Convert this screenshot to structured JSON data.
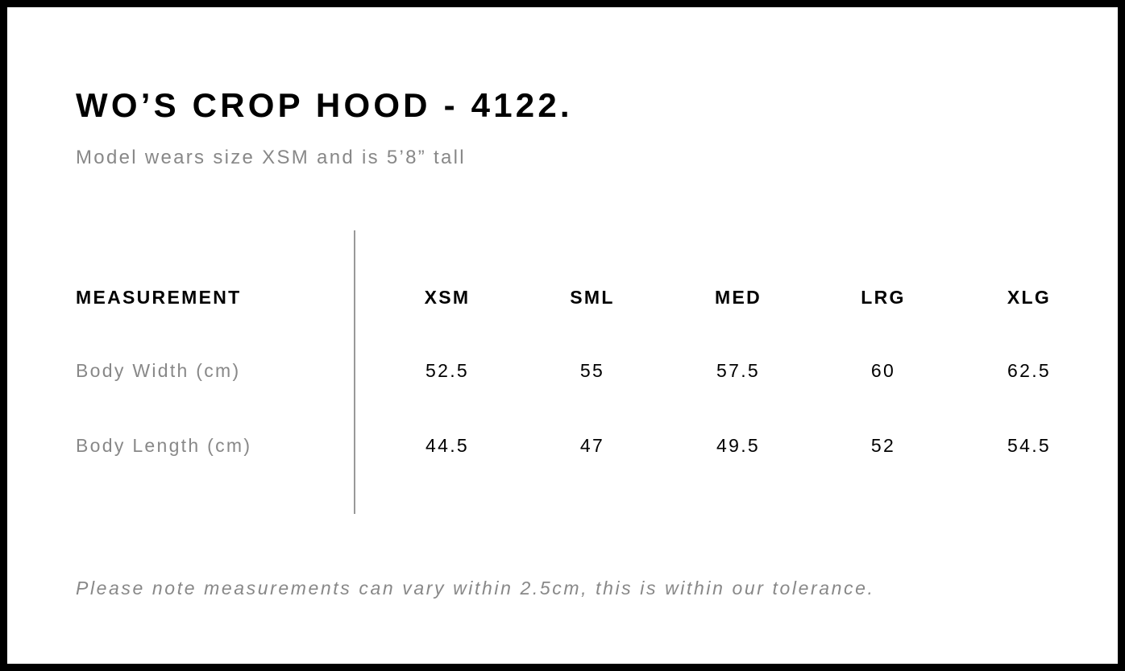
{
  "title": "WO’S CROP HOOD - 4122.",
  "subtitle": "Model wears size XSM and is 5’8” tall",
  "table": {
    "header": "MEASUREMENT",
    "sizes": [
      "XSM",
      "SML",
      "MED",
      "LRG",
      "XLG"
    ],
    "rows": [
      {
        "label": "Body Width (cm)",
        "values": [
          "52.5",
          "55",
          "57.5",
          "60",
          "62.5"
        ]
      },
      {
        "label": "Body Length (cm)",
        "values": [
          "44.5",
          "47",
          "49.5",
          "52",
          "54.5"
        ]
      }
    ]
  },
  "note": "Please note measurements can vary within 2.5cm, this is within our tolerance."
}
